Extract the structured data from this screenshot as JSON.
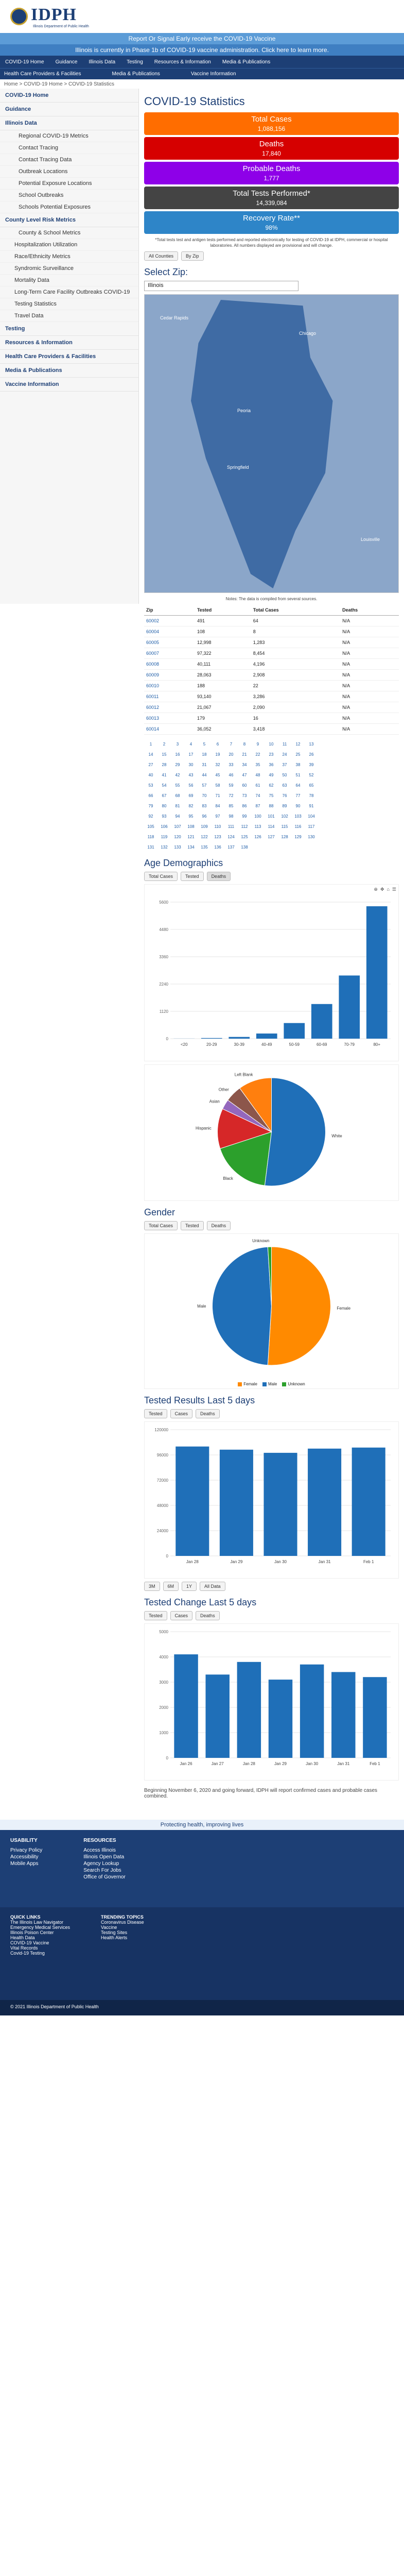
{
  "alerts": {
    "line1": "Report Or Signal Early receive the COVID-19 Vaccine",
    "line2": "Illinois is currently in Phase 1b of COVID-19 vaccine administration. Click here to learn more."
  },
  "logo": {
    "text": "IDPH",
    "sub": "Illinois Department of Public Health"
  },
  "topnav": [
    "COVID-19 Home",
    "Guidance",
    "Illinois Data",
    "Testing",
    "Resources & Information",
    "Media & Publications"
  ],
  "subnav": [
    "Health Care Providers & Facilities",
    "Media & Publications",
    "Vaccine Information"
  ],
  "breadcrumb": "Home > COVID-19 Home > COVID-19 Statistics",
  "sidebar": {
    "groups": [
      {
        "label": "COVID-19 Home",
        "items": []
      },
      {
        "label": "Guidance",
        "items": []
      },
      {
        "label": "Illinois Data",
        "items": [
          "Regional COVID-19 Metrics",
          "Contact Tracing",
          "Contact Tracing Data",
          "Outbreak Locations",
          "Potential Exposure Locations",
          "School Outbreaks",
          "Schools Potential Exposures"
        ]
      },
      {
        "label": "County Level Risk Metrics",
        "items": [
          "County & School Metrics"
        ]
      },
      {
        "label": "",
        "items": [
          "Hospitalization Utilization",
          "Race/Ethnicity Metrics",
          "Syndromic Surveillance",
          "Mortality Data",
          "Long-Term Care Facility Outbreaks COVID-19",
          "Testing Statistics",
          "Travel Data"
        ]
      },
      {
        "label": "Testing",
        "items": []
      },
      {
        "label": "Resources & Information",
        "items": []
      },
      {
        "label": "Health Care Providers & Facilities",
        "items": []
      },
      {
        "label": "Media & Publications",
        "items": []
      },
      {
        "label": "Vaccine Information",
        "items": []
      }
    ]
  },
  "page_title": "COVID-19 Statistics",
  "stats": [
    {
      "label": "Total Cases",
      "value": "1,088,156"
    },
    {
      "label": "Deaths",
      "value": "17,840"
    },
    {
      "label": "Probable Deaths",
      "value": "1,777"
    },
    {
      "label": "Total Tests Performed*",
      "value": "14,339,084"
    },
    {
      "label": "Recovery Rate**",
      "value": "98%"
    }
  ],
  "stats_note": "*Total tests test and antigen tests performed and reported electronically for testing of COVID-19 at IDPH, commercial or hospital laboratories. All numbers displayed are provisional and will change.",
  "buttons_top": [
    "All Counties",
    "By Zip"
  ],
  "zip": {
    "title": "Select Zip:",
    "selected": "Illinois",
    "map_labels": [
      "Cedar Rapids",
      "Chicago",
      "Peoria",
      "Springfield",
      "Louisville"
    ]
  },
  "zip_note": "Notes: The data is compiled from several sources.",
  "zip_table": {
    "headers": [
      "Zip",
      "Tested",
      "Total Cases",
      "Deaths"
    ],
    "rows": [
      [
        "60002",
        "491",
        "64",
        "N/A"
      ],
      [
        "60004",
        "108",
        "8",
        "N/A"
      ],
      [
        "60005",
        "12,998",
        "1,283",
        "N/A"
      ],
      [
        "60007",
        "97,322",
        "8,454",
        "N/A"
      ],
      [
        "60008",
        "40,111",
        "4,196",
        "N/A"
      ],
      [
        "60009",
        "28,063",
        "2,908",
        "N/A"
      ],
      [
        "60010",
        "188",
        "22",
        "N/A"
      ],
      [
        "60011",
        "93,140",
        "3,286",
        "N/A"
      ],
      [
        "60012",
        "21,067",
        "2,090",
        "N/A"
      ],
      [
        "60013",
        "179",
        "16",
        "N/A"
      ],
      [
        "60014",
        "36,052",
        "3,418",
        "N/A"
      ]
    ]
  },
  "pager": [
    "1",
    "2",
    "3",
    "4",
    "5",
    "6",
    "7",
    "8",
    "9",
    "10",
    "11",
    "12",
    "13",
    "14",
    "15",
    "16",
    "17",
    "18",
    "19",
    "20",
    "21",
    "22",
    "23",
    "24",
    "25",
    "26",
    "27",
    "28",
    "29",
    "30",
    "31",
    "32",
    "33",
    "34",
    "35",
    "36",
    "37",
    "38",
    "39",
    "40",
    "41",
    "42",
    "43",
    "44",
    "45",
    "46",
    "47",
    "48",
    "49",
    "50",
    "51",
    "52",
    "53",
    "54",
    "55",
    "56",
    "57",
    "58",
    "59",
    "60",
    "61",
    "62",
    "63",
    "64",
    "65",
    "66",
    "67",
    "68",
    "69",
    "70",
    "71",
    "72",
    "73",
    "74",
    "75",
    "76",
    "77",
    "78",
    "79",
    "80",
    "81",
    "82",
    "83",
    "84",
    "85",
    "86",
    "87",
    "88",
    "89",
    "90",
    "91",
    "92",
    "93",
    "94",
    "95",
    "96",
    "97",
    "98",
    "99",
    "100",
    "101",
    "102",
    "103",
    "104",
    "105",
    "106",
    "107",
    "108",
    "109",
    "110",
    "111",
    "112",
    "113",
    "114",
    "115",
    "116",
    "117",
    "118",
    "119",
    "120",
    "121",
    "122",
    "123",
    "124",
    "125",
    "126",
    "127",
    "128",
    "129",
    "130",
    "131",
    "132",
    "133",
    "134",
    "135",
    "136",
    "137",
    "138"
  ],
  "age": {
    "title": "Age Demographics",
    "tabs": [
      "Total Cases",
      "Tested",
      "Deaths"
    ],
    "sex_legend": [
      "Female",
      "Male",
      "Unknown"
    ]
  },
  "chart_data": [
    {
      "type": "bar",
      "title": "",
      "categories": [
        "<20",
        "20-29",
        "30-39",
        "40-49",
        "50-59",
        "60-69",
        "70-79",
        "80+"
      ],
      "series": [
        {
          "name": "Deaths",
          "values": [
            3,
            25,
            70,
            210,
            640,
            1420,
            2590,
            5430
          ]
        }
      ],
      "ylim": [
        0,
        5600
      ]
    },
    {
      "type": "pie",
      "categories": [
        "White",
        "Black",
        "Hispanic",
        "Asian",
        "Other",
        "Left Blank"
      ],
      "values": [
        52,
        18,
        12,
        3,
        5,
        10
      ]
    },
    {
      "type": "pie",
      "categories": [
        "Female",
        "Male",
        "Unknown"
      ],
      "values": [
        51,
        48,
        1
      ]
    },
    {
      "type": "bar",
      "title": "",
      "categories": [
        "Jan 28",
        "Jan 29",
        "Jan 30",
        "Jan 31",
        "Feb 1"
      ],
      "series": [
        {
          "name": "Tested",
          "values": [
            104000,
            101000,
            98000,
            102000,
            103000
          ]
        }
      ],
      "ylim": [
        0,
        120000
      ]
    },
    {
      "type": "bar",
      "title": "",
      "categories": [
        "Jan 26",
        "Jan 27",
        "Jan 28",
        "Jan 29",
        "Jan 30",
        "Jan 31",
        "Feb 1"
      ],
      "series": [
        {
          "name": "Cases",
          "values": [
            4100,
            3300,
            3800,
            3100,
            3700,
            3400,
            3200
          ]
        }
      ],
      "ylim": [
        0,
        5000
      ]
    }
  ],
  "gender": {
    "title": "Gender",
    "tabs": [
      "Total Cases",
      "Tested",
      "Deaths"
    ]
  },
  "tested_last5": {
    "title": "Tested Results Last 5 days",
    "tabs": [
      "Tested",
      "Cases",
      "Deaths"
    ]
  },
  "tested_change": {
    "title": "Tested Change Last 5 days",
    "tabs": [
      "Tested",
      "Cases",
      "Deaths"
    ]
  },
  "range_buttons": [
    "3M",
    "6M",
    "1Y",
    "All Data"
  ],
  "bottom_note": "Beginning November 6, 2020 and going forward, IDPH will report confirmed cases and probable cases combined.",
  "tagline": "Protecting health, improving lives",
  "footer": {
    "col1_title": "USABILITY",
    "col1": [
      "Privacy Policy",
      "Accessibility",
      "Mobile Apps"
    ],
    "col2_title": "RESOURCES",
    "col2": [
      "Access Illinois",
      "Illinois Open Data",
      "Agency Lookup",
      "Search For Jobs",
      "Office of Governor"
    ],
    "col3_title": "QUICK LINKS",
    "col3": [
      "The Illinois Law Navigator",
      "Emergency Medical Services",
      "Illinois Poison Center",
      "Health Data",
      "COVID-19 Vaccine",
      "Vital Records",
      "Covid-19 Testing"
    ],
    "col4_title": "TRENDING TOPICS",
    "col4": [
      "Coronavirus Disease",
      "Vaccine",
      "Testing Sites",
      "Health Alerts"
    ],
    "copyright": "© 2021 Illinois Department of Public Health"
  }
}
